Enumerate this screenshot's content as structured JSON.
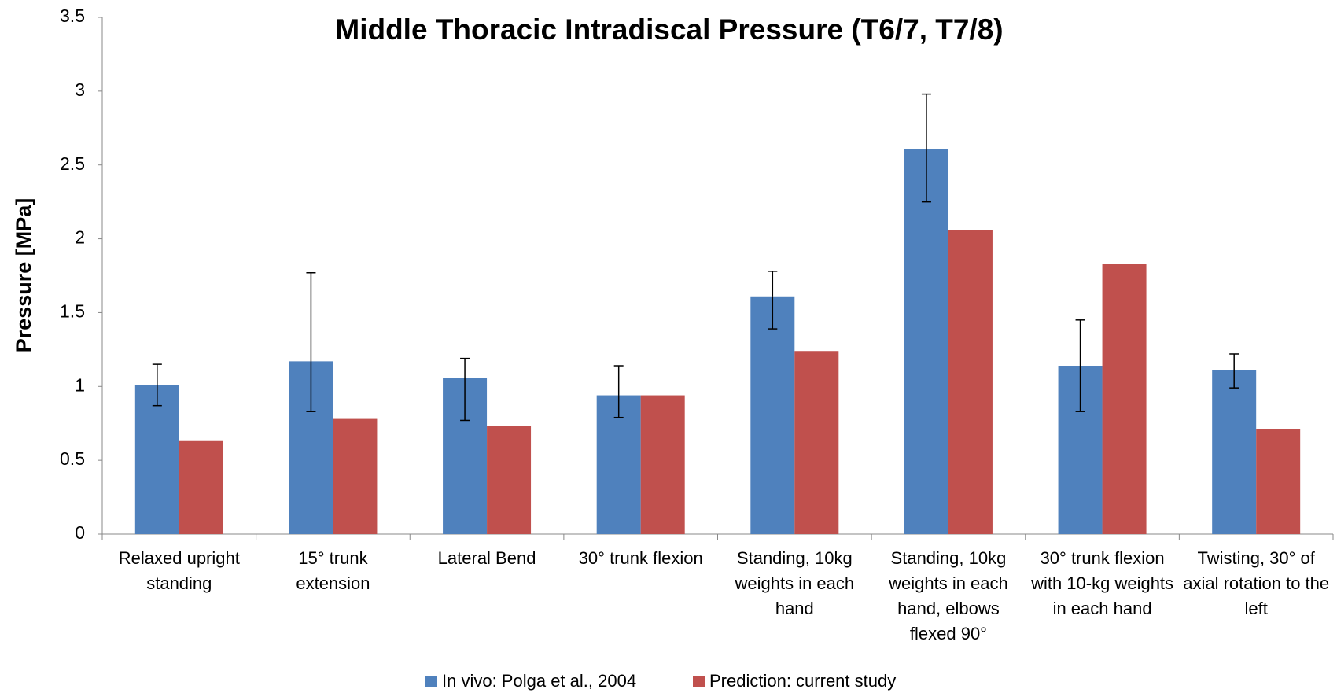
{
  "chart_data": {
    "type": "bar",
    "title": "Middle Thoracic Intradiscal Pressure (T6/7, T7/8)",
    "y_label": "Pressure [MPa]",
    "categories": [
      "Relaxed upright standing",
      "15° trunk extension",
      "Lateral Bend",
      "30° trunk flexion",
      "Standing, 10kg weights in each hand",
      "Standing, 10kg weights in each hand, elbows flexed 90°",
      "30° trunk flexion with 10-kg weights in each hand",
      "Twisting, 30° of axial rotation to the left"
    ],
    "series": [
      {
        "name": "In vivo: Polga et al., 2004",
        "color": "#4f81bd",
        "values": [
          1.01,
          1.17,
          1.06,
          0.94,
          1.61,
          2.61,
          1.14,
          1.11
        ],
        "error_low": [
          0.14,
          0.34,
          0.29,
          0.15,
          0.22,
          0.36,
          0.31,
          0.12
        ],
        "error_high": [
          0.14,
          0.6,
          0.13,
          0.2,
          0.17,
          0.37,
          0.31,
          0.11
        ]
      },
      {
        "name": "Prediction: current study",
        "color": "#c0504d",
        "values": [
          0.63,
          0.78,
          0.73,
          0.94,
          1.24,
          2.06,
          1.83,
          0.71
        ]
      }
    ],
    "ylim": [
      0,
      3.5
    ],
    "yticks": [
      0,
      0.5,
      1,
      1.5,
      2,
      2.5,
      3,
      3.5
    ],
    "legend": "bottom"
  }
}
